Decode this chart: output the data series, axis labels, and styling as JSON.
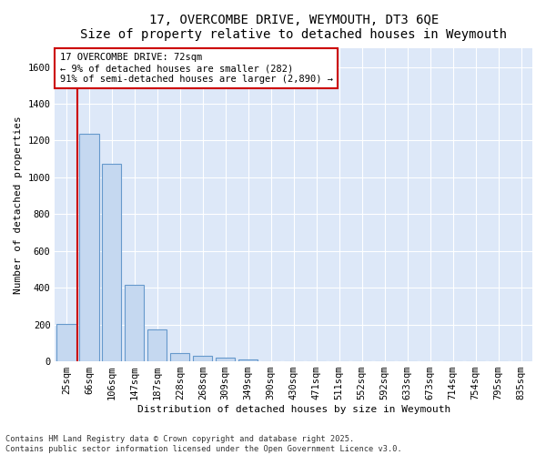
{
  "title_line1": "17, OVERCOMBE DRIVE, WEYMOUTH, DT3 6QE",
  "title_line2": "Size of property relative to detached houses in Weymouth",
  "xlabel": "Distribution of detached houses by size in Weymouth",
  "ylabel": "Number of detached properties",
  "bar_values": [
    205,
    1235,
    1075,
    415,
    175,
    45,
    28,
    18,
    8,
    2,
    0,
    0,
    0,
    0,
    0,
    0,
    0,
    0,
    0,
    0,
    0
  ],
  "categories": [
    "25sqm",
    "66sqm",
    "106sqm",
    "147sqm",
    "187sqm",
    "228sqm",
    "268sqm",
    "309sqm",
    "349sqm",
    "390sqm",
    "430sqm",
    "471sqm",
    "511sqm",
    "552sqm",
    "592sqm",
    "633sqm",
    "673sqm",
    "714sqm",
    "754sqm",
    "795sqm",
    "835sqm"
  ],
  "bar_color": "#c5d8f0",
  "bar_edge_color": "#6699cc",
  "vline_x": 0.5,
  "vline_color": "#cc0000",
  "annotation_text": "17 OVERCOMBE DRIVE: 72sqm\n← 9% of detached houses are smaller (282)\n91% of semi-detached houses are larger (2,890) →",
  "annotation_box_color": "#cc0000",
  "ylim": [
    0,
    1700
  ],
  "yticks": [
    0,
    200,
    400,
    600,
    800,
    1000,
    1200,
    1400,
    1600
  ],
  "background_color": "#dde8f8",
  "grid_color": "#ffffff",
  "footer_text": "Contains HM Land Registry data © Crown copyright and database right 2025.\nContains public sector information licensed under the Open Government Licence v3.0.",
  "title_fontsize": 10,
  "subtitle_fontsize": 9,
  "axis_label_fontsize": 8,
  "tick_fontsize": 7.5,
  "annotation_fontsize": 7.5
}
